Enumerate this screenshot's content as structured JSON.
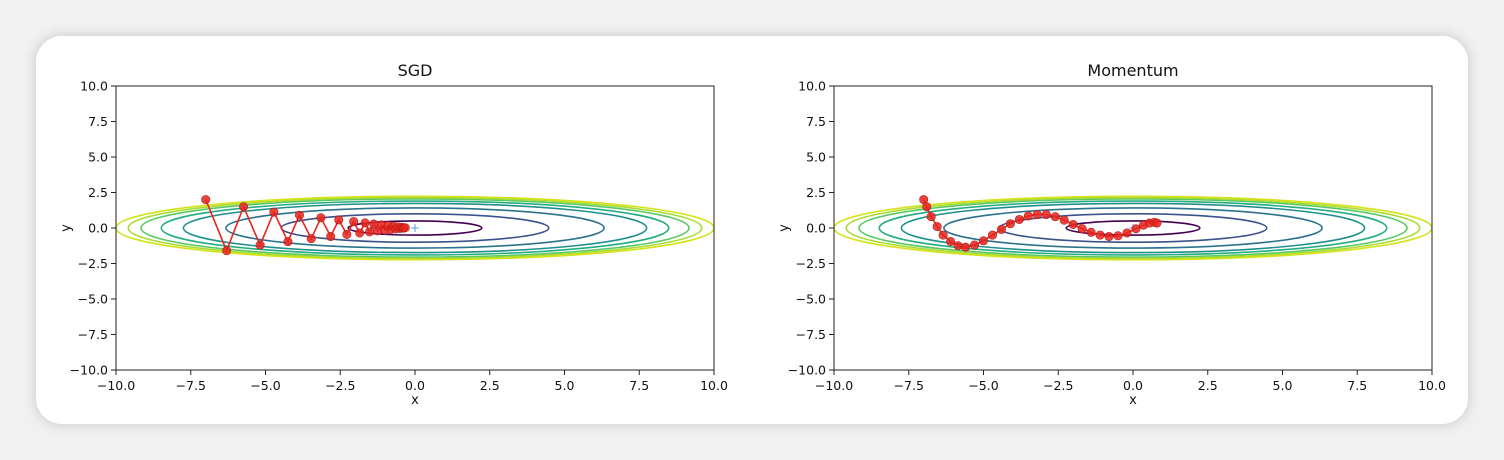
{
  "chart_data": [
    {
      "type": "line",
      "title": "SGD",
      "xlabel": "x",
      "ylabel": "y",
      "xlim": [
        -10,
        10
      ],
      "ylim": [
        -10,
        10
      ],
      "xticks": [
        "−10.0",
        "−7.5",
        "−5.0",
        "−2.5",
        "0.0",
        "2.5",
        "5.0",
        "7.5",
        "10.0"
      ],
      "yticks": [
        "−10.0",
        "−7.5",
        "−5.0",
        "−2.5",
        "0.0",
        "2.5",
        "5.0",
        "7.5",
        "10.0"
      ],
      "grid": false,
      "contour": {
        "function": "x^2/20 + y^2",
        "levels": [
          0.25,
          1.0,
          2.0,
          3.0,
          3.6,
          4.2,
          4.6,
          5.0
        ],
        "colors": [
          "#440154",
          "#3b528b",
          "#2c728e",
          "#21908d",
          "#27ad81",
          "#5cc863",
          "#aadc32",
          "#d4e21a"
        ],
        "minimum": [
          0,
          0
        ]
      },
      "path": {
        "color": "#e8251e",
        "x": [
          -7.0,
          -6.3,
          -5.733,
          -5.18,
          -4.72,
          -4.25,
          -3.864,
          -3.47,
          -3.147,
          -2.82,
          -2.55,
          -2.28,
          -2.05,
          -1.85,
          -1.67,
          -1.52,
          -1.38,
          -1.25,
          -1.12,
          -1.0,
          -0.9,
          -0.8,
          -0.72,
          -0.64,
          -0.57,
          -0.5,
          -0.44,
          -0.38,
          -0.33
        ],
        "y": [
          2.0,
          -1.6,
          1.5,
          -1.2,
          1.12,
          -0.96,
          0.9,
          -0.75,
          0.72,
          -0.6,
          0.57,
          -0.45,
          0.45,
          -0.35,
          0.36,
          -0.27,
          0.28,
          -0.2,
          0.22,
          -0.15,
          0.17,
          -0.1,
          0.12,
          -0.06,
          0.08,
          -0.03,
          0.05,
          -0.01,
          0.02
        ]
      }
    },
    {
      "type": "line",
      "title": "Momentum",
      "xlabel": "x",
      "ylabel": "y",
      "xlim": [
        -10,
        10
      ],
      "ylim": [
        -10,
        10
      ],
      "xticks": [
        "−10.0",
        "−7.5",
        "−5.0",
        "−2.5",
        "0.0",
        "2.5",
        "5.0",
        "7.5",
        "10.0"
      ],
      "yticks": [
        "−10.0",
        "−7.5",
        "−5.0",
        "−2.5",
        "0.0",
        "2.5",
        "5.0",
        "7.5",
        "10.0"
      ],
      "grid": false,
      "contour": {
        "function": "x^2/20 + y^2",
        "levels": [
          0.25,
          1.0,
          2.0,
          3.0,
          3.6,
          4.2,
          4.6,
          5.0
        ],
        "colors": [
          "#440154",
          "#3b528b",
          "#2c728e",
          "#21908d",
          "#27ad81",
          "#5cc863",
          "#aadc32",
          "#d4e21a"
        ],
        "minimum": [
          0,
          0
        ]
      },
      "path": {
        "color": "#e8251e",
        "x": [
          -7.0,
          -6.9,
          -6.75,
          -6.55,
          -6.35,
          -6.1,
          -5.85,
          -5.6,
          -5.3,
          -5.0,
          -4.7,
          -4.4,
          -4.1,
          -3.8,
          -3.5,
          -3.2,
          -2.9,
          -2.6,
          -2.3,
          -2.0,
          -1.7,
          -1.4,
          -1.1,
          -0.8,
          -0.5,
          -0.2,
          0.1,
          0.35,
          0.55,
          0.72,
          0.8
        ],
        "y": [
          2.0,
          1.5,
          0.8,
          0.1,
          -0.5,
          -0.95,
          -1.25,
          -1.35,
          -1.2,
          -0.9,
          -0.5,
          -0.1,
          0.3,
          0.6,
          0.85,
          0.95,
          0.95,
          0.8,
          0.55,
          0.25,
          -0.05,
          -0.3,
          -0.5,
          -0.6,
          -0.55,
          -0.35,
          -0.05,
          0.2,
          0.35,
          0.4,
          0.35
        ]
      }
    }
  ]
}
